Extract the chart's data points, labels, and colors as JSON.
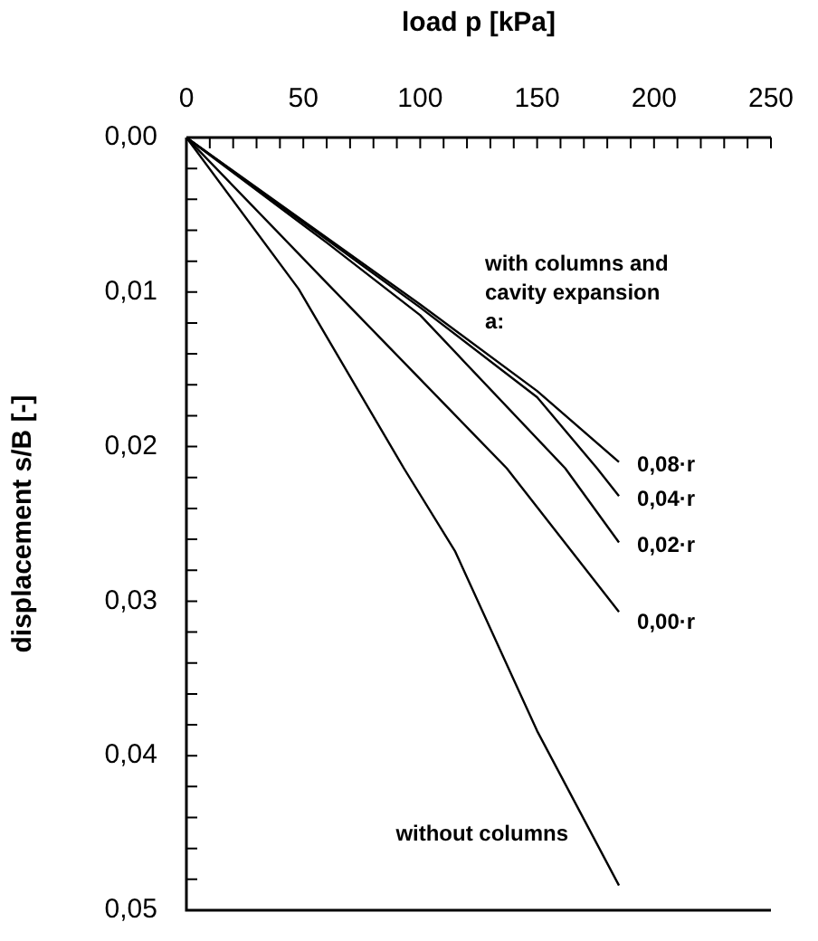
{
  "chart_data": {
    "type": "line",
    "xlabel": "load p [kPa]",
    "ylabel": "displacement s/B [-]",
    "xlim": [
      0,
      250
    ],
    "xticks": [
      0,
      {
        "value": 10,
        "label": null
      },
      {
        "value": 20,
        "label": null
      },
      {
        "value": 30,
        "label": null
      },
      {
        "value": 40,
        "label": null
      },
      50,
      {
        "value": 60,
        "label": null
      },
      {
        "value": 70,
        "label": null
      },
      {
        "value": 80,
        "label": null
      },
      {
        "value": 90,
        "label": null
      },
      100,
      {
        "value": 110,
        "label": null
      },
      {
        "value": 120,
        "label": null
      },
      {
        "value": 130,
        "label": null
      },
      {
        "value": 140,
        "label": null
      },
      150,
      {
        "value": 160,
        "label": null
      },
      {
        "value": 170,
        "label": null
      },
      {
        "value": 180,
        "label": null
      },
      {
        "value": 190,
        "label": null
      },
      200,
      {
        "value": 210,
        "label": null
      },
      {
        "value": 220,
        "label": null
      },
      {
        "value": 230,
        "label": null
      },
      {
        "value": 240,
        "label": null
      },
      250
    ],
    "ylim": [
      0.05,
      0
    ],
    "yticks": [
      {
        "value": 0,
        "label": "0,00"
      },
      {
        "value": 0.002,
        "label": null
      },
      {
        "value": 0.004,
        "label": null
      },
      {
        "value": 0.006,
        "label": null
      },
      {
        "value": 0.008,
        "label": null
      },
      {
        "value": 0.01,
        "label": "0,01"
      },
      {
        "value": 0.012,
        "label": null
      },
      {
        "value": 0.014,
        "label": null
      },
      {
        "value": 0.016,
        "label": null
      },
      {
        "value": 0.018,
        "label": null
      },
      {
        "value": 0.02,
        "label": "0,02"
      },
      {
        "value": 0.022,
        "label": null
      },
      {
        "value": 0.024,
        "label": null
      },
      {
        "value": 0.026,
        "label": null
      },
      {
        "value": 0.028,
        "label": null
      },
      {
        "value": 0.03,
        "label": "0,03"
      },
      {
        "value": 0.032,
        "label": null
      },
      {
        "value": 0.034,
        "label": null
      },
      {
        "value": 0.036,
        "label": null
      },
      {
        "value": 0.038,
        "label": null
      },
      {
        "value": 0.04,
        "label": "0,04"
      },
      {
        "value": 0.042,
        "label": null
      },
      {
        "value": 0.044,
        "label": null
      },
      {
        "value": 0.046,
        "label": null
      },
      {
        "value": 0.048,
        "label": null
      },
      {
        "value": 0.05,
        "label": "0,05"
      }
    ],
    "grid": false,
    "legend": false,
    "annotations": [
      "with columns and\ncavity expansion\na:"
    ],
    "series": [
      {
        "name": "0,08·r",
        "color": "#000000",
        "x": [
          0,
          100,
          150,
          185
        ],
        "values": [
          0,
          0.0108,
          0.0164,
          0.021
        ]
      },
      {
        "name": "0,04·r",
        "color": "#000000",
        "x": [
          0,
          100,
          150,
          175.6,
          185
        ],
        "values": [
          0,
          0.011,
          0.0168,
          0.0214,
          0.0232
        ]
      },
      {
        "name": "0,02·r",
        "color": "#000000",
        "x": [
          0,
          60,
          100,
          162,
          185
        ],
        "values": [
          0,
          0.0068,
          0.0115,
          0.0214,
          0.0262
        ]
      },
      {
        "name": "0,00·r",
        "color": "#000000",
        "x": [
          0,
          60,
          137,
          185
        ],
        "values": [
          0,
          0.0094,
          0.0214,
          0.0307
        ]
      },
      {
        "name": "without columns",
        "color": "#000000",
        "x": [
          0,
          48,
          93,
          115,
          150,
          185
        ],
        "values": [
          0,
          0.0098,
          0.0214,
          0.0268,
          0.0384,
          0.0484
        ]
      }
    ]
  }
}
